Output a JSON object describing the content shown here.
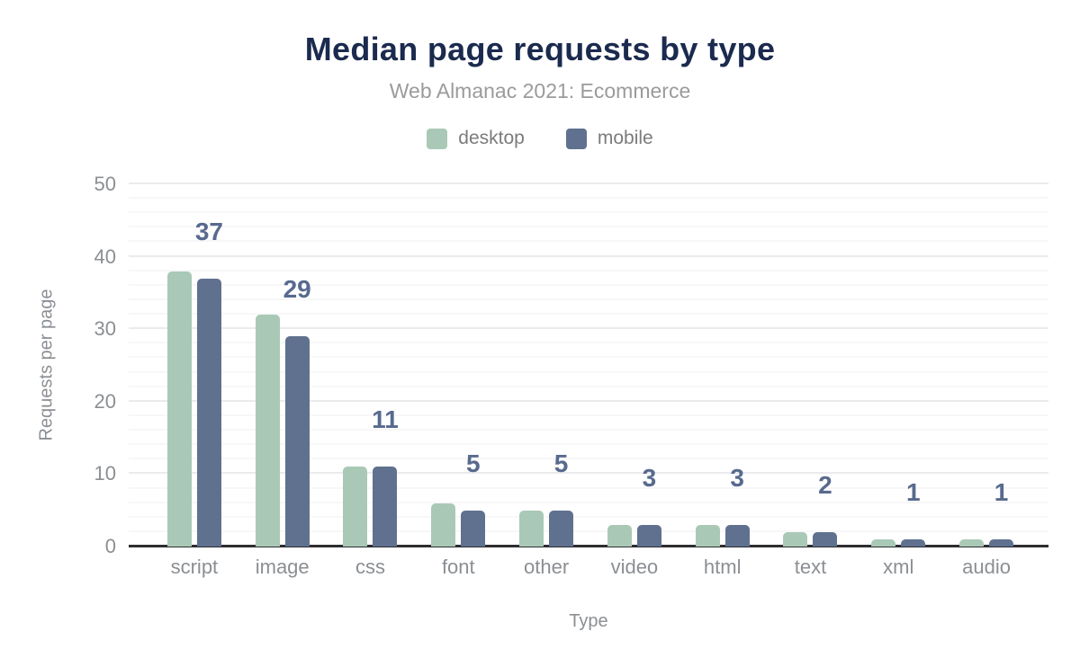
{
  "chart_data": {
    "type": "bar",
    "title": "Median page requests by type",
    "subtitle": "Web Almanac 2021: Ecommerce",
    "xlabel": "Type",
    "ylabel": "Requests per page",
    "categories": [
      "script",
      "image",
      "css",
      "font",
      "other",
      "video",
      "html",
      "text",
      "xml",
      "audio"
    ],
    "series": [
      {
        "name": "desktop",
        "color": "#a9c9b6",
        "values": [
          38,
          32,
          11,
          6,
          5,
          3,
          3,
          2,
          1,
          1
        ]
      },
      {
        "name": "mobile",
        "color": "#60718f",
        "values": [
          37,
          29,
          11,
          5,
          5,
          3,
          3,
          2,
          1,
          1
        ]
      }
    ],
    "data_labels": [
      37,
      29,
      11,
      5,
      5,
      3,
      3,
      2,
      1,
      1
    ],
    "ylim": [
      0,
      50
    ],
    "ytick_step": 10,
    "minor_gridline_step": 2,
    "yticks": [
      0,
      10,
      20,
      30,
      40,
      50
    ],
    "legend_position": "top",
    "grid": true
  },
  "colors": {
    "title": "#1b2a4e",
    "subtitle": "#9b9b9b",
    "axis_text": "#8b8f93",
    "data_label": "#586a8e",
    "desktop_bar": "#a9c9b6",
    "mobile_bar": "#60718f",
    "axis_line": "#2e2e31",
    "major_gridline": "#ebebee",
    "minor_gridline": "#f7f7f9",
    "background": "#ffffff"
  }
}
